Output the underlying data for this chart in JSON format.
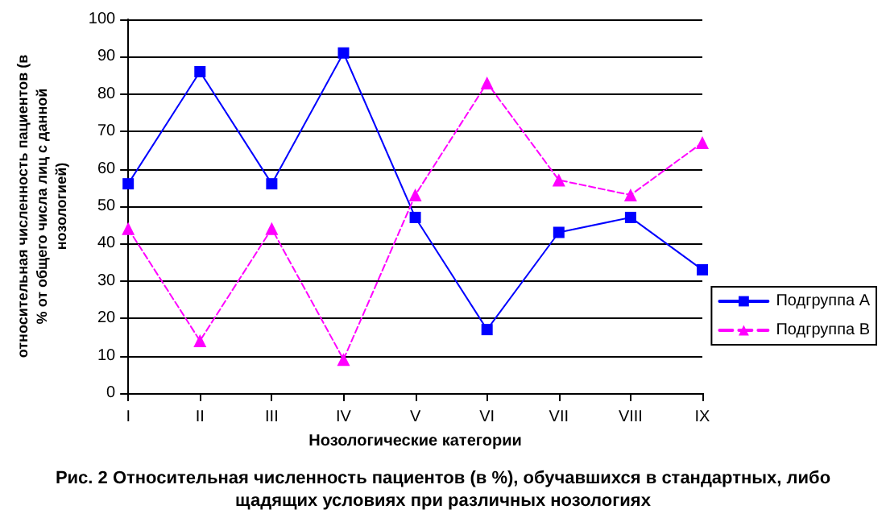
{
  "chart_data": {
    "type": "line",
    "xlabel": "Нозологические категории",
    "ylabel": "относительная численность пациентов (в\n% от общего числа лиц с данной\nнозологией)",
    "annotations": [
      "Рис. 2 Относительная численность пациентов (в %), обучавшихся в стандартных, либо\nщадящих условиях при различных нозологиях"
    ],
    "categories": [
      "I",
      "II",
      "III",
      "IV",
      "V",
      "VI",
      "VII",
      "VIII",
      "IX"
    ],
    "series": [
      {
        "name": "Подгруппа А",
        "color": "#0000ff",
        "marker": "square",
        "line_style": "solid",
        "values": [
          56,
          86,
          56,
          91,
          47,
          17,
          43,
          47,
          33
        ]
      },
      {
        "name": "Подгруппа В",
        "color": "#ff00ff",
        "marker": "triangle",
        "line_style": "dashed",
        "values": [
          44,
          14,
          44,
          9,
          53,
          83,
          57,
          53,
          67
        ]
      }
    ],
    "ylim": [
      0,
      100
    ],
    "yticks": [
      0,
      10,
      20,
      30,
      40,
      50,
      60,
      70,
      80,
      90,
      100
    ],
    "grid": "y",
    "legend": "right"
  }
}
